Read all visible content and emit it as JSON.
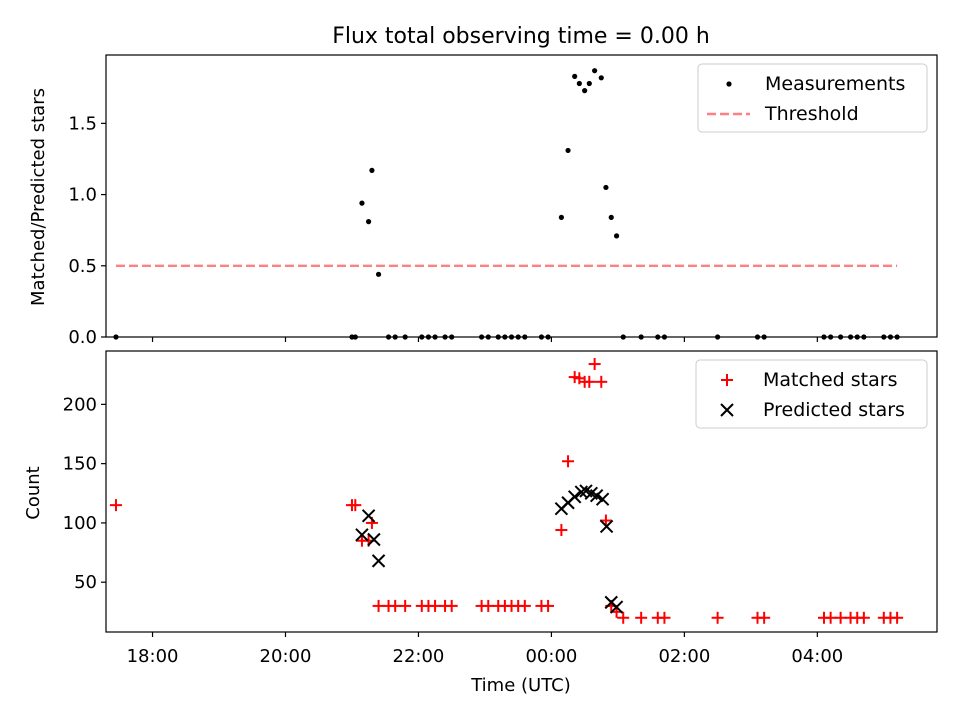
{
  "chart_data": [
    {
      "type": "scatter",
      "title": "Flux total observing time = 0.00 h",
      "xlabel": "",
      "ylabel": "Matched/Predicted stars",
      "xlim": [
        -6.7,
        5.8
      ],
      "ylim": [
        0,
        1.98
      ],
      "xticks": [
        -6,
        -4,
        -2,
        0,
        2,
        4
      ],
      "yticks": [
        0.0,
        0.5,
        1.0,
        1.5
      ],
      "ytick_labels": [
        "0.0",
        "0.5",
        "1.0",
        "1.5"
      ],
      "legend": [
        "Measurements",
        "Threshold"
      ],
      "legend_position": "top-right",
      "threshold": {
        "value": 0.5,
        "x_range": [
          -6.55,
          5.2
        ],
        "color": "#ff8080",
        "style": "dashed"
      },
      "series": [
        {
          "name": "Measurements",
          "color": "#000000",
          "x": [
            -6.55,
            -3.0,
            -2.95,
            -2.85,
            -2.75,
            -2.7,
            -2.6,
            -2.45,
            -2.35,
            -2.2,
            -1.95,
            -1.85,
            -1.75,
            -1.6,
            -1.5,
            -1.05,
            -0.95,
            -0.8,
            -0.7,
            -0.6,
            -0.5,
            -0.4,
            -0.15,
            -0.05,
            0.15,
            0.25,
            0.35,
            0.42,
            0.5,
            0.57,
            0.65,
            0.75,
            0.82,
            0.9,
            0.98,
            1.08,
            1.35,
            1.6,
            1.7,
            2.5,
            3.1,
            3.2,
            4.1,
            4.2,
            4.35,
            4.5,
            4.6,
            4.7,
            5.0,
            5.1,
            5.2
          ],
          "y": [
            0,
            0,
            0,
            0.94,
            0.81,
            1.17,
            0.44,
            0,
            0,
            0,
            0,
            0,
            0,
            0,
            0,
            0,
            0,
            0,
            0,
            0,
            0,
            0,
            0,
            0,
            0.84,
            1.31,
            1.83,
            1.78,
            1.73,
            1.78,
            1.87,
            1.82,
            1.05,
            0.84,
            0.71,
            0,
            0,
            0,
            0,
            0,
            0,
            0,
            0,
            0,
            0,
            0,
            0,
            0,
            0,
            0,
            0
          ]
        }
      ]
    },
    {
      "type": "scatter",
      "title": "",
      "xlabel": "Time (UTC)",
      "ylabel": "Count",
      "xlim": [
        -6.7,
        5.8
      ],
      "ylim": [
        8,
        245
      ],
      "xticks": [
        -6,
        -4,
        -2,
        0,
        2,
        4
      ],
      "xtick_labels": [
        "18:00",
        "20:00",
        "22:00",
        "00:00",
        "02:00",
        "04:00"
      ],
      "yticks": [
        50,
        100,
        150,
        200
      ],
      "ytick_labels": [
        "50",
        "100",
        "150",
        "200"
      ],
      "legend": [
        "Matched stars",
        "Predicted stars"
      ],
      "legend_position": "top-right",
      "series": [
        {
          "name": "Matched stars",
          "marker": "plus",
          "color": "#ff0000",
          "x": [
            -6.55,
            -3.0,
            -2.95,
            -2.85,
            -2.75,
            -2.7,
            -2.6,
            -2.45,
            -2.35,
            -2.2,
            -1.95,
            -1.85,
            -1.75,
            -1.6,
            -1.5,
            -1.05,
            -0.95,
            -0.8,
            -0.7,
            -0.6,
            -0.5,
            -0.4,
            -0.15,
            -0.05,
            0.15,
            0.25,
            0.35,
            0.42,
            0.5,
            0.57,
            0.65,
            0.75,
            0.82,
            0.9,
            0.98,
            1.08,
            1.35,
            1.6,
            1.7,
            2.5,
            3.1,
            3.2,
            4.1,
            4.2,
            4.35,
            4.5,
            4.6,
            4.7,
            5.0,
            5.1,
            5.2
          ],
          "y": [
            115,
            115,
            115,
            85,
            85,
            100,
            30,
            30,
            30,
            30,
            30,
            30,
            30,
            30,
            30,
            30,
            30,
            30,
            30,
            30,
            30,
            30,
            30,
            30,
            94,
            152,
            223,
            222,
            219,
            219,
            234,
            219,
            102,
            30,
            25,
            20,
            20,
            20,
            20,
            20,
            20,
            20,
            20,
            20,
            20,
            20,
            20,
            20,
            20,
            20,
            20
          ]
        },
        {
          "name": "Predicted stars",
          "marker": "x",
          "color": "#000000",
          "x": [
            -2.85,
            -2.75,
            -2.67,
            -2.6,
            0.15,
            0.25,
            0.35,
            0.45,
            0.52,
            0.6,
            0.68,
            0.77,
            0.83,
            0.9,
            0.98
          ],
          "y": [
            90,
            106,
            86,
            68,
            112,
            117,
            122,
            126,
            127,
            125,
            123,
            120,
            97,
            33,
            29
          ]
        }
      ]
    }
  ]
}
